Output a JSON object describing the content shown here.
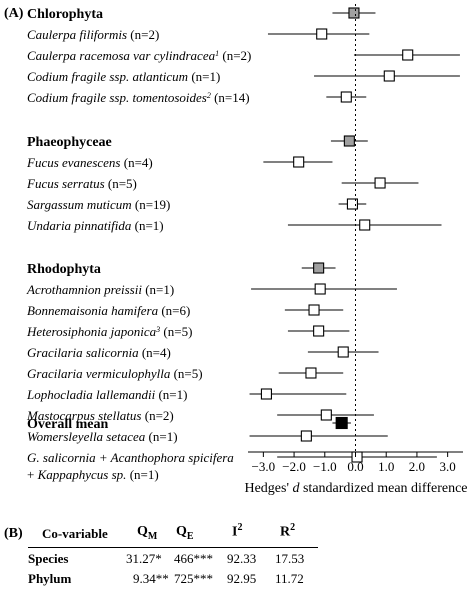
{
  "panel_a_label": "(A)",
  "panel_b_label": "(B)",
  "chart_data": {
    "type": "forest",
    "xlabel_prefix": "Hedges'",
    "xlabel_italic": "d",
    "xlabel_suffix": "standardized mean difference",
    "xlim": [
      -3.5,
      3.5
    ],
    "xticks": [
      -3.0,
      -2.0,
      -1.0,
      0.0,
      1.0,
      2.0,
      3.0
    ],
    "xtick_labels": [
      "−3.0",
      "−2.0",
      "−1.0",
      "0.0",
      "1.0",
      "2.0",
      "3.0"
    ],
    "reference_line": 0,
    "groups": [
      {
        "name": "Chlorophyta",
        "summary": {
          "mean": -0.05,
          "lo": -0.75,
          "hi": 0.65
        },
        "items": [
          {
            "label": "Caulerpa filiformis",
            "sup": "",
            "n": "(n=2)",
            "mean": -1.1,
            "lo": -2.85,
            "hi": 0.45
          },
          {
            "label": "Caulerpa racemosa var cylindracea",
            "sup": "1",
            "n": "(n=2)",
            "mean": 1.7,
            "lo": -0.05,
            "hi": 3.4
          },
          {
            "label": "Codium fragile ssp. atlanticum",
            "sup": "",
            "n": "(n=1)",
            "mean": 1.1,
            "lo": -1.35,
            "hi": 3.4
          },
          {
            "label": "Codium fragile ssp. tomentosoides",
            "sup": "2",
            "n": "(n=14)",
            "mean": -0.3,
            "lo": -0.95,
            "hi": 0.35
          }
        ]
      },
      {
        "name": "Phaeophyceae",
        "summary": {
          "mean": -0.2,
          "lo": -0.8,
          "hi": 0.4
        },
        "items": [
          {
            "label": "Fucus evanescens",
            "sup": "",
            "n": "(n=4)",
            "mean": -1.85,
            "lo": -3.0,
            "hi": -0.75
          },
          {
            "label": "Fucus serratus",
            "sup": "",
            "n": "(n=5)",
            "mean": 0.8,
            "lo": -0.45,
            "hi": 2.05
          },
          {
            "label": "Sargassum muticum",
            "sup": "",
            "n": "(n=19)",
            "mean": -0.1,
            "lo": -0.55,
            "hi": 0.35
          },
          {
            "label": "Undaria pinnatifida",
            "sup": "",
            "n": "(n=1)",
            "mean": 0.3,
            "lo": -2.2,
            "hi": 2.8
          }
        ]
      },
      {
        "name": "Rhodophyta",
        "summary": {
          "mean": -1.2,
          "lo": -1.75,
          "hi": -0.65
        },
        "items": [
          {
            "label": "Acrothamnion preissii",
            "sup": "",
            "n": "(n=1)",
            "mean": -1.15,
            "lo": -3.4,
            "hi": 1.35
          },
          {
            "label": "Bonnemaisonia hamifera",
            "sup": "",
            "n": "(n=6)",
            "mean": -1.35,
            "lo": -2.3,
            "hi": -0.4
          },
          {
            "label": "Heterosiphonia japonica",
            "sup": "3",
            "n": "(n=5)",
            "mean": -1.2,
            "lo": -2.2,
            "hi": -0.2
          },
          {
            "label": "Gracilaria salicornia",
            "sup": "",
            "n": "(n=4)",
            "mean": -0.4,
            "lo": -1.55,
            "hi": 0.75
          },
          {
            "label": "Gracilaria vermiculophylla",
            "sup": "",
            "n": "(n=5)",
            "mean": -1.45,
            "lo": -2.5,
            "hi": -0.4
          },
          {
            "label": "Lophocladia lallemandii",
            "sup": "",
            "n": "(n=1)",
            "mean": -2.9,
            "lo": -3.45,
            "hi": -0.3
          },
          {
            "label": "Mastocarpus stellatus",
            "sup": "",
            "n": "(n=2)",
            "mean": -0.95,
            "lo": -2.55,
            "hi": 0.6
          },
          {
            "label": "Womersleyella setacea",
            "sup": "",
            "n": "(n=1)",
            "mean": -1.6,
            "lo": -3.45,
            "hi": 1.05
          },
          {
            "label": "G. salicornia + Acanthophora spicifera",
            "label2": "+ Kappaphycus sp. (n=1)",
            "sup": "",
            "n": "",
            "mean": 0.05,
            "lo": -2.55,
            "hi": 2.65
          }
        ]
      }
    ],
    "overall": {
      "label": "Overall mean",
      "mean": -0.45,
      "lo": -0.75,
      "hi": -0.15
    }
  },
  "table": {
    "headers": {
      "covariable": "Co-variable",
      "qm": "Q",
      "qm_sub": "M",
      "qe": "Q",
      "qe_sub": "E",
      "i2": "I",
      "i2_sup": "2",
      "r2": "R",
      "r2_sup": "2"
    },
    "rows": [
      {
        "label": "Species",
        "qm": "31.27*",
        "qe": "466***",
        "i2": "92.33",
        "r2": "17.53"
      },
      {
        "label": "Phylum",
        "qm": "9.34**",
        "qe": "725***",
        "i2": "92.95",
        "r2": "11.72"
      }
    ]
  }
}
